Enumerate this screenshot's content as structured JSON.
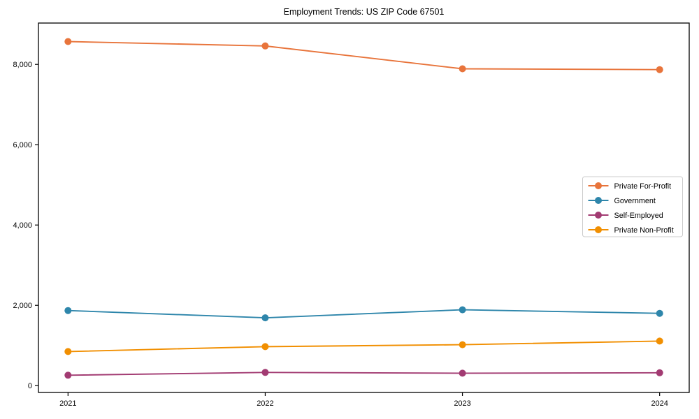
{
  "chart_data": {
    "type": "line",
    "title": "Employment Trends: US ZIP Code 67501",
    "categories": [
      "2021",
      "2022",
      "2023",
      "2024"
    ],
    "x": [
      2021,
      2022,
      2023,
      2024
    ],
    "series": [
      {
        "name": "Private For-Profit",
        "color": "#E8743B",
        "values": [
          8570,
          8460,
          7890,
          7870
        ]
      },
      {
        "name": "Government",
        "color": "#2E86AB",
        "values": [
          1870,
          1690,
          1890,
          1800
        ]
      },
      {
        "name": "Self-Employed",
        "color": "#A23B72",
        "values": [
          260,
          330,
          310,
          320
        ]
      },
      {
        "name": "Private Non-Profit",
        "color": "#F18F01",
        "values": [
          850,
          970,
          1020,
          1110
        ]
      }
    ],
    "xlabel": "",
    "ylabel": "",
    "xlim": [
      2020.85,
      2024.15
    ],
    "ylim": [
      -170,
      9030
    ],
    "yticks": [
      0,
      2000,
      4000,
      6000,
      8000
    ],
    "ytick_labels": [
      "0",
      "2,000",
      "4,000",
      "6,000",
      "8,000"
    ],
    "marker": "o",
    "grid": false,
    "legend_position": "center right",
    "axis_color": "#000000",
    "legend_border_color": "#cccccc",
    "background_color": "#ffffff"
  }
}
